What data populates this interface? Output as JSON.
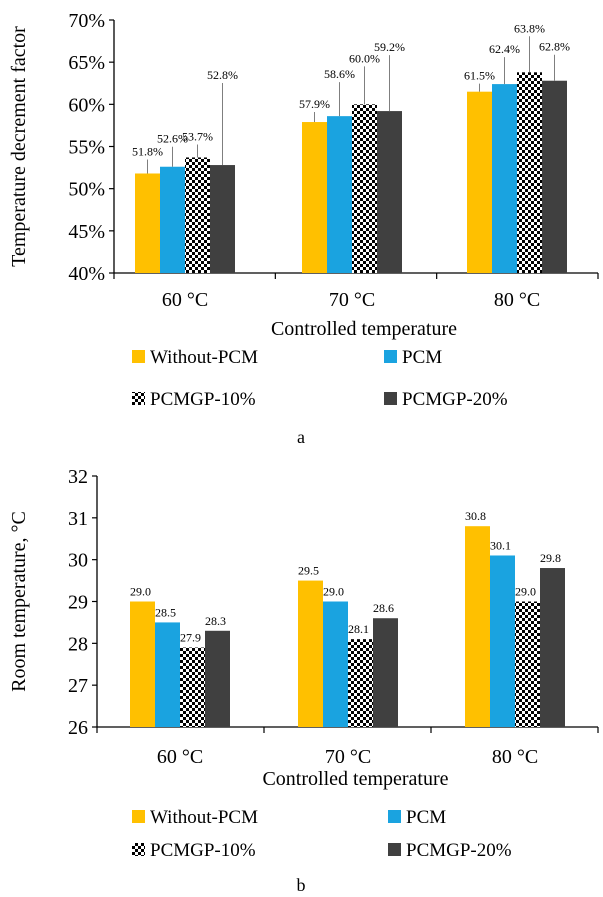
{
  "colors": {
    "without_pcm": "#FFC000",
    "pcm": "#1AA3E0",
    "pcmgp20": "#404040",
    "checker_dark": "#000000",
    "checker_light": "#ffffff"
  },
  "chart_data": [
    {
      "type": "bar",
      "panel_label": "a",
      "categories": [
        "60 °C",
        "70 °C",
        "80 °C"
      ],
      "series": [
        {
          "name": "Without-PCM",
          "values": [
            51.8,
            57.9,
            61.5
          ],
          "labels": [
            "51.8%",
            "57.9%",
            "61.5%"
          ],
          "color_key": "without_pcm"
        },
        {
          "name": "PCM",
          "values": [
            52.6,
            58.6,
            62.4
          ],
          "labels": [
            "52.6%",
            "58.6%",
            "62.4%"
          ],
          "color_key": "pcm"
        },
        {
          "name": "PCMGP-10%",
          "values": [
            53.7,
            60.0,
            63.8
          ],
          "labels": [
            "53.7%",
            "60.0%",
            "63.8%"
          ],
          "color_key": "checker"
        },
        {
          "name": "PCMGP-20%",
          "values": [
            52.8,
            59.2,
            62.8
          ],
          "labels": [
            "52.8%",
            "59.2%",
            "62.8%"
          ],
          "color_key": "pcmgp20"
        }
      ],
      "xlabel": "Controlled temperature",
      "ylabel": "Temperature decrement factor",
      "ylim": [
        40,
        70
      ],
      "yticks": [
        40,
        45,
        50,
        55,
        60,
        65,
        70
      ],
      "ytick_labels": [
        "40%",
        "45%",
        "50%",
        "55%",
        "60%",
        "65%",
        "70%"
      ],
      "grid": false,
      "legend": "bottom",
      "leader_lines": true
    },
    {
      "type": "bar",
      "panel_label": "b",
      "categories": [
        "60 °C",
        "70 °C",
        "80 °C"
      ],
      "series": [
        {
          "name": "Without-PCM",
          "values": [
            29.0,
            29.5,
            30.8
          ],
          "labels": [
            "29.0",
            "29.5",
            "30.8"
          ],
          "color_key": "without_pcm"
        },
        {
          "name": "PCM",
          "values": [
            28.5,
            29.0,
            30.1
          ],
          "labels": [
            "28.5",
            "29.0",
            "30.1"
          ],
          "color_key": "pcm"
        },
        {
          "name": "PCMGP-10%",
          "values": [
            27.9,
            28.1,
            29.0
          ],
          "labels": [
            "27.9",
            "28.1",
            "29.0"
          ],
          "color_key": "checker"
        },
        {
          "name": "PCMGP-20%",
          "values": [
            28.3,
            28.6,
            29.8
          ],
          "labels": [
            "28.3",
            "28.6",
            "29.8"
          ],
          "color_key": "pcmgp20"
        }
      ],
      "xlabel": "Controlled temperature",
      "ylabel": "Room temperature, °C",
      "ylim": [
        26,
        32
      ],
      "yticks": [
        26,
        27,
        28,
        29,
        30,
        31,
        32
      ],
      "ytick_labels": [
        "26",
        "27",
        "28",
        "29",
        "30",
        "31",
        "32"
      ],
      "grid": false,
      "legend": "bottom",
      "leader_lines": false
    }
  ]
}
